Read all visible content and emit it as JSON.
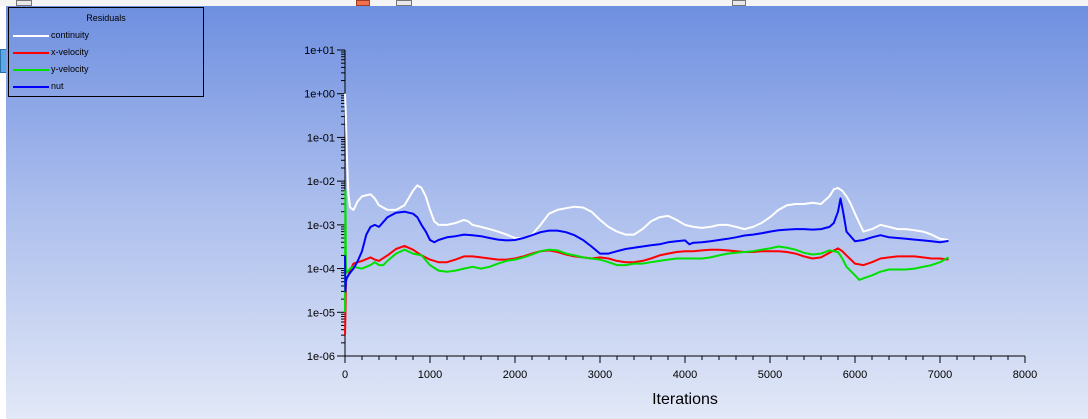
{
  "chart_data": {
    "type": "line",
    "title": "",
    "xlabel": "Iterations",
    "ylabel": "",
    "xlim": [
      0,
      8000
    ],
    "ylim": [
      1e-06,
      10
    ],
    "yscale": "log",
    "x_ticks": [
      0,
      1000,
      2000,
      3000,
      4000,
      5000,
      6000,
      7000,
      8000
    ],
    "x_tick_labels": [
      "0",
      "1000",
      "2000",
      "3000",
      "4000",
      "5000",
      "6000",
      "7000",
      "8000"
    ],
    "y_ticks": [
      1e-06,
      1e-05,
      0.0001,
      0.001,
      0.01,
      0.1,
      1,
      10
    ],
    "y_tick_labels": [
      "1e-06",
      "1e-05",
      "1e-04",
      "1e-03",
      "1e-02",
      "1e-01",
      "1e+00",
      "1e+01"
    ],
    "grid": false,
    "legend": {
      "title": "Residuals",
      "position": "top-left"
    },
    "series": [
      {
        "name": "continuity",
        "color": "#ffffff",
        "x": [
          0,
          10,
          20,
          40,
          60,
          100,
          150,
          200,
          300,
          350,
          400,
          500,
          600,
          700,
          800,
          850,
          900,
          950,
          1000,
          1050,
          1100,
          1200,
          1300,
          1400,
          1450,
          1500,
          1600,
          1700,
          1800,
          1900,
          2000,
          2100,
          2200,
          2300,
          2400,
          2500,
          2600,
          2700,
          2800,
          2900,
          3000,
          3100,
          3200,
          3300,
          3400,
          3500,
          3600,
          3700,
          3800,
          3900,
          4000,
          4100,
          4200,
          4300,
          4400,
          4500,
          4600,
          4700,
          4800,
          4900,
          5000,
          5100,
          5200,
          5300,
          5400,
          5500,
          5600,
          5700,
          5750,
          5800,
          5850,
          5900,
          5950,
          6000,
          6050,
          6100,
          6200,
          6300,
          6400,
          6500,
          6600,
          6700,
          6800,
          6900,
          7000,
          7100
        ],
        "y": [
          1.0,
          0.3,
          0.05,
          0.005,
          0.0025,
          0.0022,
          0.0035,
          0.0045,
          0.005,
          0.004,
          0.0028,
          0.0022,
          0.0022,
          0.0028,
          0.006,
          0.008,
          0.007,
          0.0045,
          0.0022,
          0.0012,
          0.001,
          0.001,
          0.0011,
          0.0013,
          0.0012,
          0.001,
          0.0009,
          0.0008,
          0.0007,
          0.0006,
          0.0005,
          0.0005,
          0.0006,
          0.001,
          0.0018,
          0.0022,
          0.0024,
          0.0026,
          0.0025,
          0.002,
          0.0013,
          0.0009,
          0.0007,
          0.0006,
          0.0006,
          0.0008,
          0.0012,
          0.0015,
          0.0016,
          0.0013,
          0.001,
          0.0009,
          0.00085,
          0.0009,
          0.001,
          0.001,
          0.0009,
          0.0008,
          0.0009,
          0.0011,
          0.0015,
          0.0022,
          0.0028,
          0.003,
          0.003,
          0.0032,
          0.003,
          0.0045,
          0.0065,
          0.007,
          0.006,
          0.0045,
          0.003,
          0.0018,
          0.0011,
          0.0007,
          0.0008,
          0.001,
          0.0009,
          0.0008,
          0.0008,
          0.00075,
          0.0007,
          0.0006,
          0.00048,
          0.00045
        ]
      },
      {
        "name": "x-velocity",
        "color": "#ff0000",
        "x": [
          0,
          5,
          10,
          20,
          40,
          60,
          100,
          150,
          200,
          300,
          350,
          400,
          500,
          600,
          700,
          800,
          900,
          1000,
          1100,
          1200,
          1300,
          1400,
          1500,
          1600,
          1700,
          1800,
          1900,
          2000,
          2100,
          2200,
          2300,
          2400,
          2500,
          2600,
          2700,
          2800,
          2900,
          3000,
          3100,
          3200,
          3300,
          3400,
          3500,
          3600,
          3700,
          3800,
          3900,
          4000,
          4100,
          4200,
          4300,
          4400,
          4500,
          4600,
          4700,
          4800,
          4900,
          5000,
          5100,
          5200,
          5300,
          5400,
          5500,
          5600,
          5700,
          5800,
          5850,
          5900,
          6000,
          6100,
          6200,
          6300,
          6400,
          6500,
          6600,
          6700,
          6800,
          6900,
          7000,
          7100
        ],
        "y": [
          3e-06,
          8e-06,
          5e-05,
          6e-05,
          7e-05,
          9e-05,
          0.00013,
          0.00014,
          0.00015,
          0.00018,
          0.00016,
          0.00015,
          0.0002,
          0.00028,
          0.00033,
          0.00027,
          0.0002,
          0.00016,
          0.00014,
          0.00014,
          0.00016,
          0.00019,
          0.00019,
          0.00018,
          0.00017,
          0.00016,
          0.00016,
          0.00017,
          0.00019,
          0.00022,
          0.00025,
          0.00026,
          0.00024,
          0.00021,
          0.00019,
          0.00018,
          0.00017,
          0.00018,
          0.00017,
          0.00015,
          0.00014,
          0.00014,
          0.00015,
          0.00017,
          0.0002,
          0.00022,
          0.00024,
          0.00025,
          0.00025,
          0.00026,
          0.00027,
          0.00027,
          0.00026,
          0.00025,
          0.00024,
          0.00024,
          0.00025,
          0.00025,
          0.00025,
          0.00024,
          0.00022,
          0.00019,
          0.00017,
          0.00018,
          0.00023,
          0.00029,
          0.00025,
          0.0002,
          0.00013,
          0.00012,
          0.00014,
          0.00017,
          0.00018,
          0.00019,
          0.00019,
          0.00019,
          0.00018,
          0.00017,
          0.00017,
          0.00016
        ]
      },
      {
        "name": "y-velocity",
        "color": "#00e000",
        "x": [
          0,
          5,
          10,
          20,
          40,
          60,
          100,
          200,
          300,
          350,
          400,
          450,
          500,
          600,
          700,
          800,
          900,
          1000,
          1100,
          1200,
          1300,
          1400,
          1500,
          1600,
          1700,
          1800,
          1900,
          2000,
          2100,
          2200,
          2300,
          2400,
          2500,
          2600,
          2700,
          2800,
          2900,
          3000,
          3100,
          3200,
          3300,
          3400,
          3500,
          3600,
          3700,
          3800,
          3900,
          4000,
          4100,
          4200,
          4300,
          4400,
          4500,
          4600,
          4700,
          4800,
          4900,
          5000,
          5100,
          5200,
          5300,
          5400,
          5500,
          5600,
          5700,
          5800,
          5850,
          5900,
          6000,
          6050,
          6100,
          6200,
          6300,
          6400,
          6500,
          6600,
          6700,
          6800,
          6900,
          7000,
          7100
        ],
        "y": [
          1e-05,
          0.006,
          0.0001,
          8e-05,
          9e-05,
          0.0001,
          0.00011,
          0.0001,
          0.00012,
          0.00014,
          0.00012,
          0.00012,
          0.00015,
          0.00022,
          0.00027,
          0.00022,
          0.0002,
          0.00012,
          9e-05,
          8.5e-05,
          9e-05,
          0.0001,
          0.00011,
          0.0001,
          0.00011,
          0.00013,
          0.00015,
          0.00016,
          0.00018,
          0.00021,
          0.00025,
          0.00027,
          0.00026,
          0.00022,
          0.0002,
          0.00018,
          0.00017,
          0.00016,
          0.00014,
          0.00012,
          0.00012,
          0.00013,
          0.00013,
          0.00014,
          0.00015,
          0.00016,
          0.00017,
          0.00017,
          0.00017,
          0.00017,
          0.00018,
          0.0002,
          0.00022,
          0.00023,
          0.00024,
          0.00025,
          0.00027,
          0.00029,
          0.00032,
          0.0003,
          0.00027,
          0.00023,
          0.00021,
          0.00022,
          0.00026,
          0.00024,
          0.00017,
          0.00011,
          7e-05,
          5.5e-05,
          6e-05,
          7e-05,
          8.5e-05,
          9.5e-05,
          9.5e-05,
          9.5e-05,
          0.0001,
          0.00011,
          0.00012,
          0.00014,
          0.00018
        ]
      },
      {
        "name": "nut",
        "color": "#0000ff",
        "x": [
          0,
          5,
          10,
          20,
          40,
          60,
          100,
          150,
          200,
          250,
          300,
          350,
          400,
          500,
          600,
          700,
          800,
          850,
          900,
          950,
          1000,
          1050,
          1100,
          1200,
          1300,
          1400,
          1500,
          1600,
          1700,
          1800,
          1900,
          2000,
          2100,
          2200,
          2300,
          2400,
          2500,
          2600,
          2700,
          2800,
          2900,
          3000,
          3100,
          3200,
          3300,
          3400,
          3500,
          3600,
          3700,
          3800,
          3900,
          4000,
          4050,
          4100,
          4200,
          4300,
          4400,
          4500,
          4600,
          4700,
          4800,
          4900,
          5000,
          5100,
          5200,
          5300,
          5400,
          5500,
          5600,
          5700,
          5750,
          5800,
          5830,
          5860,
          5900,
          6000,
          6100,
          6200,
          6300,
          6400,
          6500,
          6600,
          6700,
          6800,
          6900,
          7000,
          7100
        ],
        "y": [
          0.0002,
          3e-05,
          5e-05,
          6e-05,
          7e-05,
          8e-05,
          0.0001,
          0.00015,
          0.00025,
          0.0006,
          0.0009,
          0.001,
          0.0009,
          0.0015,
          0.0019,
          0.002,
          0.0018,
          0.0015,
          0.001,
          0.0007,
          0.00045,
          0.0004,
          0.00045,
          0.00052,
          0.00055,
          0.0006,
          0.00058,
          0.00055,
          0.0005,
          0.00046,
          0.00044,
          0.00045,
          0.0005,
          0.00058,
          0.00068,
          0.00074,
          0.00074,
          0.00068,
          0.00058,
          0.00045,
          0.00032,
          0.00022,
          0.00022,
          0.00025,
          0.00028,
          0.0003,
          0.00032,
          0.00034,
          0.00036,
          0.0004,
          0.00042,
          0.00044,
          0.00036,
          0.00039,
          0.0004,
          0.00042,
          0.00045,
          0.00048,
          0.00052,
          0.00057,
          0.0006,
          0.00064,
          0.0007,
          0.00075,
          0.00078,
          0.0008,
          0.0008,
          0.00078,
          0.0008,
          0.0009,
          0.0011,
          0.002,
          0.004,
          0.002,
          0.0007,
          0.00042,
          0.00045,
          0.00052,
          0.00058,
          0.00052,
          0.0005,
          0.00048,
          0.00046,
          0.00044,
          0.00042,
          0.0004,
          0.00043
        ]
      }
    ]
  }
}
